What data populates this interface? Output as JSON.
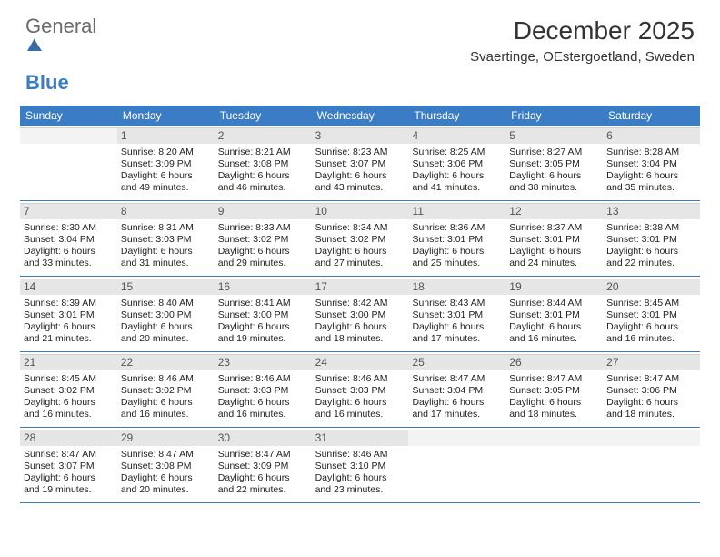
{
  "brand": {
    "text1": "General",
    "text2": "Blue"
  },
  "title": "December 2025",
  "location": "Svaertinge, OEstergoetland, Sweden",
  "days": [
    "Sunday",
    "Monday",
    "Tuesday",
    "Wednesday",
    "Thursday",
    "Friday",
    "Saturday"
  ],
  "header_bg": "#3b7dc4",
  "weeks": [
    [
      {
        "n": "",
        "sr": "",
        "ss": "",
        "d1": "",
        "d2": "",
        "out": true
      },
      {
        "n": "1",
        "sr": "Sunrise: 8:20 AM",
        "ss": "Sunset: 3:09 PM",
        "d1": "Daylight: 6 hours",
        "d2": "and 49 minutes."
      },
      {
        "n": "2",
        "sr": "Sunrise: 8:21 AM",
        "ss": "Sunset: 3:08 PM",
        "d1": "Daylight: 6 hours",
        "d2": "and 46 minutes."
      },
      {
        "n": "3",
        "sr": "Sunrise: 8:23 AM",
        "ss": "Sunset: 3:07 PM",
        "d1": "Daylight: 6 hours",
        "d2": "and 43 minutes."
      },
      {
        "n": "4",
        "sr": "Sunrise: 8:25 AM",
        "ss": "Sunset: 3:06 PM",
        "d1": "Daylight: 6 hours",
        "d2": "and 41 minutes."
      },
      {
        "n": "5",
        "sr": "Sunrise: 8:27 AM",
        "ss": "Sunset: 3:05 PM",
        "d1": "Daylight: 6 hours",
        "d2": "and 38 minutes."
      },
      {
        "n": "6",
        "sr": "Sunrise: 8:28 AM",
        "ss": "Sunset: 3:04 PM",
        "d1": "Daylight: 6 hours",
        "d2": "and 35 minutes."
      }
    ],
    [
      {
        "n": "7",
        "sr": "Sunrise: 8:30 AM",
        "ss": "Sunset: 3:04 PM",
        "d1": "Daylight: 6 hours",
        "d2": "and 33 minutes."
      },
      {
        "n": "8",
        "sr": "Sunrise: 8:31 AM",
        "ss": "Sunset: 3:03 PM",
        "d1": "Daylight: 6 hours",
        "d2": "and 31 minutes."
      },
      {
        "n": "9",
        "sr": "Sunrise: 8:33 AM",
        "ss": "Sunset: 3:02 PM",
        "d1": "Daylight: 6 hours",
        "d2": "and 29 minutes."
      },
      {
        "n": "10",
        "sr": "Sunrise: 8:34 AM",
        "ss": "Sunset: 3:02 PM",
        "d1": "Daylight: 6 hours",
        "d2": "and 27 minutes."
      },
      {
        "n": "11",
        "sr": "Sunrise: 8:36 AM",
        "ss": "Sunset: 3:01 PM",
        "d1": "Daylight: 6 hours",
        "d2": "and 25 minutes."
      },
      {
        "n": "12",
        "sr": "Sunrise: 8:37 AM",
        "ss": "Sunset: 3:01 PM",
        "d1": "Daylight: 6 hours",
        "d2": "and 24 minutes."
      },
      {
        "n": "13",
        "sr": "Sunrise: 8:38 AM",
        "ss": "Sunset: 3:01 PM",
        "d1": "Daylight: 6 hours",
        "d2": "and 22 minutes."
      }
    ],
    [
      {
        "n": "14",
        "sr": "Sunrise: 8:39 AM",
        "ss": "Sunset: 3:01 PM",
        "d1": "Daylight: 6 hours",
        "d2": "and 21 minutes."
      },
      {
        "n": "15",
        "sr": "Sunrise: 8:40 AM",
        "ss": "Sunset: 3:00 PM",
        "d1": "Daylight: 6 hours",
        "d2": "and 20 minutes."
      },
      {
        "n": "16",
        "sr": "Sunrise: 8:41 AM",
        "ss": "Sunset: 3:00 PM",
        "d1": "Daylight: 6 hours",
        "d2": "and 19 minutes."
      },
      {
        "n": "17",
        "sr": "Sunrise: 8:42 AM",
        "ss": "Sunset: 3:00 PM",
        "d1": "Daylight: 6 hours",
        "d2": "and 18 minutes."
      },
      {
        "n": "18",
        "sr": "Sunrise: 8:43 AM",
        "ss": "Sunset: 3:01 PM",
        "d1": "Daylight: 6 hours",
        "d2": "and 17 minutes."
      },
      {
        "n": "19",
        "sr": "Sunrise: 8:44 AM",
        "ss": "Sunset: 3:01 PM",
        "d1": "Daylight: 6 hours",
        "d2": "and 16 minutes."
      },
      {
        "n": "20",
        "sr": "Sunrise: 8:45 AM",
        "ss": "Sunset: 3:01 PM",
        "d1": "Daylight: 6 hours",
        "d2": "and 16 minutes."
      }
    ],
    [
      {
        "n": "21",
        "sr": "Sunrise: 8:45 AM",
        "ss": "Sunset: 3:02 PM",
        "d1": "Daylight: 6 hours",
        "d2": "and 16 minutes."
      },
      {
        "n": "22",
        "sr": "Sunrise: 8:46 AM",
        "ss": "Sunset: 3:02 PM",
        "d1": "Daylight: 6 hours",
        "d2": "and 16 minutes."
      },
      {
        "n": "23",
        "sr": "Sunrise: 8:46 AM",
        "ss": "Sunset: 3:03 PM",
        "d1": "Daylight: 6 hours",
        "d2": "and 16 minutes."
      },
      {
        "n": "24",
        "sr": "Sunrise: 8:46 AM",
        "ss": "Sunset: 3:03 PM",
        "d1": "Daylight: 6 hours",
        "d2": "and 16 minutes."
      },
      {
        "n": "25",
        "sr": "Sunrise: 8:47 AM",
        "ss": "Sunset: 3:04 PM",
        "d1": "Daylight: 6 hours",
        "d2": "and 17 minutes."
      },
      {
        "n": "26",
        "sr": "Sunrise: 8:47 AM",
        "ss": "Sunset: 3:05 PM",
        "d1": "Daylight: 6 hours",
        "d2": "and 18 minutes."
      },
      {
        "n": "27",
        "sr": "Sunrise: 8:47 AM",
        "ss": "Sunset: 3:06 PM",
        "d1": "Daylight: 6 hours",
        "d2": "and 18 minutes."
      }
    ],
    [
      {
        "n": "28",
        "sr": "Sunrise: 8:47 AM",
        "ss": "Sunset: 3:07 PM",
        "d1": "Daylight: 6 hours",
        "d2": "and 19 minutes."
      },
      {
        "n": "29",
        "sr": "Sunrise: 8:47 AM",
        "ss": "Sunset: 3:08 PM",
        "d1": "Daylight: 6 hours",
        "d2": "and 20 minutes."
      },
      {
        "n": "30",
        "sr": "Sunrise: 8:47 AM",
        "ss": "Sunset: 3:09 PM",
        "d1": "Daylight: 6 hours",
        "d2": "and 22 minutes."
      },
      {
        "n": "31",
        "sr": "Sunrise: 8:46 AM",
        "ss": "Sunset: 3:10 PM",
        "d1": "Daylight: 6 hours",
        "d2": "and 23 minutes."
      },
      {
        "n": "",
        "sr": "",
        "ss": "",
        "d1": "",
        "d2": "",
        "out": true
      },
      {
        "n": "",
        "sr": "",
        "ss": "",
        "d1": "",
        "d2": "",
        "out": true
      },
      {
        "n": "",
        "sr": "",
        "ss": "",
        "d1": "",
        "d2": "",
        "out": true
      }
    ]
  ]
}
